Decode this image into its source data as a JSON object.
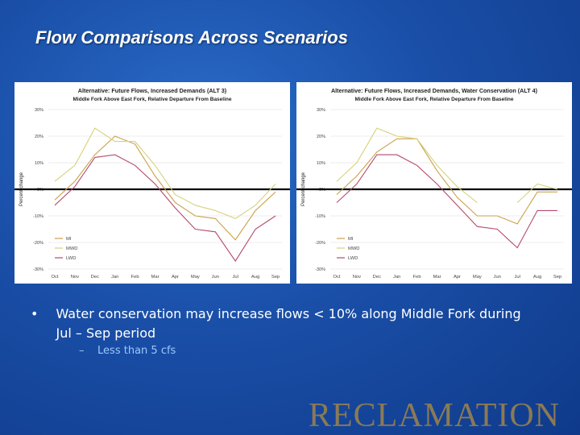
{
  "slide": {
    "title": "Flow Comparisons Across Scenarios",
    "bullet": "Water conservation may increase flows < 10% along Middle Fork during Jul – Sep period",
    "bullet_symbol": "•",
    "sub_bullet": "Less than 5 cfs",
    "sub_bullet_symbol": "–",
    "logo_text": "RECLAMATION"
  },
  "colors": {
    "mi": "#c9a24a",
    "mwd": "#d6d27a",
    "lwd": "#b54a6a",
    "axis": "#000000"
  },
  "chart_data": [
    {
      "type": "line",
      "title": "Alternative: Future Flows, Increased Demands (ALT 3)",
      "subtitle": "Middle Fork Above East Fork, Relative Departure From Baseline",
      "xlabel": "",
      "ylabel": "Percent change",
      "categories": [
        "Oct",
        "Nov",
        "Dec",
        "Jan",
        "Feb",
        "Mar",
        "Apr",
        "May",
        "Jun",
        "Jul",
        "Aug",
        "Sep"
      ],
      "ylim": [
        -30,
        30
      ],
      "yticks": [
        "30%",
        "20%",
        "10%",
        "0%",
        "-10%",
        "-20%",
        "-30%"
      ],
      "legend_position": "bottom-left",
      "series": [
        {
          "name": "MI",
          "values": [
            -4,
            3,
            13,
            20,
            17,
            5,
            -5,
            -10,
            -11,
            -19,
            -8,
            -1
          ]
        },
        {
          "name": "MWD",
          "values": [
            3,
            9,
            23,
            18,
            18,
            9,
            -2,
            -6,
            -8,
            -11,
            -6,
            2
          ]
        },
        {
          "name": "LWD",
          "values": [
            -6,
            1,
            12,
            13,
            9,
            2,
            -7,
            -15,
            -16,
            -27,
            -15,
            -10
          ]
        }
      ]
    },
    {
      "type": "line",
      "title": "Alternative: Future Flows, Increased Demands, Water Conservation (ALT 4)",
      "subtitle": "Middle Fork Above East Fork, Relative Departure From Baseline",
      "xlabel": "",
      "ylabel": "Percent change",
      "categories": [
        "Oct",
        "Nov",
        "Dec",
        "Jan",
        "Feb",
        "Mar",
        "Apr",
        "May",
        "Jun",
        "Jul",
        "Aug",
        "Sep"
      ],
      "ylim": [
        -30,
        30
      ],
      "yticks": [
        "30%",
        "20%",
        "10%",
        "0%",
        "-10%",
        "-20%",
        "-30%"
      ],
      "legend_position": "bottom-left",
      "series": [
        {
          "name": "MI",
          "values": [
            -2,
            5,
            14,
            19,
            19,
            7,
            -3,
            -10,
            -10,
            -13,
            -1,
            -1
          ]
        },
        {
          "name": "MWD",
          "values": [
            3,
            10,
            23,
            20,
            19,
            9,
            1,
            -5,
            null,
            -5,
            2,
            0
          ]
        },
        {
          "name": "LWD",
          "values": [
            -5,
            2,
            13,
            13,
            9,
            2,
            -6,
            -14,
            -15,
            -22,
            -8,
            -8
          ]
        }
      ]
    }
  ]
}
